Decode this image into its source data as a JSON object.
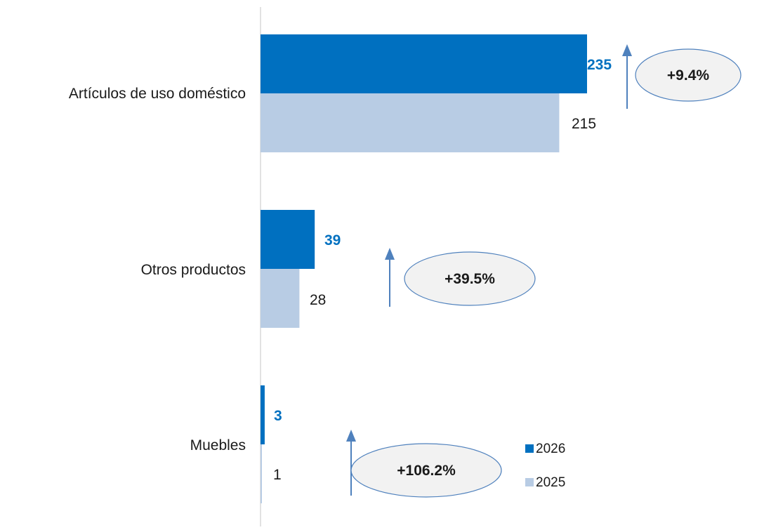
{
  "chart_data": {
    "type": "bar",
    "orientation": "horizontal",
    "categories": [
      "Artículos de uso doméstico",
      "Otros productos",
      "Muebles"
    ],
    "series": [
      {
        "name": "2026",
        "values": [
          235,
          39,
          3
        ],
        "labels": [
          "235",
          "39",
          "3"
        ],
        "color": "#0070C0"
      },
      {
        "name": "2025",
        "values": [
          215,
          28,
          1
        ],
        "labels": [
          "215",
          "28",
          "1"
        ],
        "color": "#B8CCE4"
      }
    ],
    "changes": [
      "+9.4%",
      "+39.5%",
      "+106.2%"
    ],
    "title": "",
    "xlabel": "",
    "ylabel": "",
    "xlim": [
      0,
      235
    ],
    "grid": false,
    "legend": {
      "position": "bottom-right",
      "entries": [
        "2026",
        "2025"
      ]
    },
    "colors": {
      "bar_2026": "#0070C0",
      "bar_2025": "#B8CCE4",
      "label_2026": "#0070C0",
      "arrow": "#4F81BD",
      "ellipse_stroke": "#4F81BD",
      "ellipse_fill": "#F2F2F2",
      "axis": "#D9D9D9"
    }
  }
}
